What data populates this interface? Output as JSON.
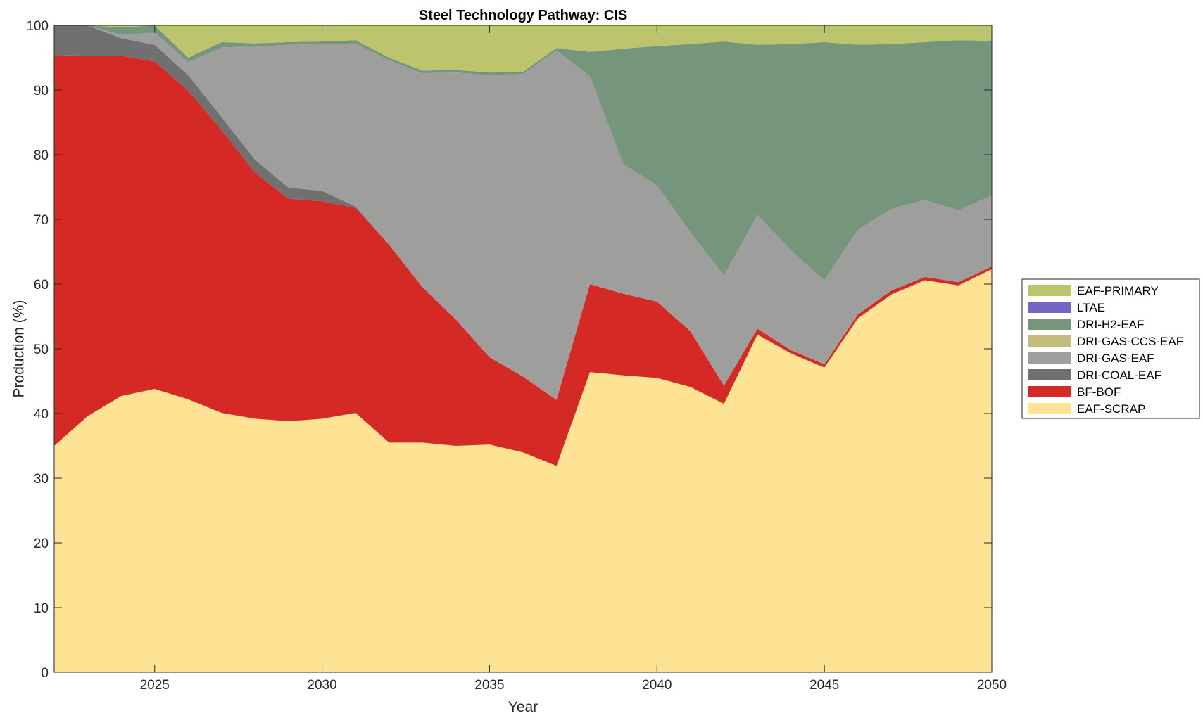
{
  "chart_data": {
    "type": "area",
    "stacked": true,
    "title": "Steel Technology Pathway: CIS",
    "xlabel": "Year",
    "ylabel": "Production (%)",
    "xlim": [
      2022,
      2050
    ],
    "ylim": [
      0,
      100
    ],
    "xticks": [
      2025,
      2030,
      2035,
      2040,
      2045,
      2050
    ],
    "yticks": [
      0,
      10,
      20,
      30,
      40,
      50,
      60,
      70,
      80,
      90,
      100
    ],
    "grid": false,
    "legend_position": "right",
    "x": [
      2022,
      2023,
      2024,
      2025,
      2026,
      2027,
      2028,
      2029,
      2030,
      2031,
      2032,
      2033,
      2034,
      2035,
      2036,
      2037,
      2038,
      2039,
      2040,
      2041,
      2042,
      2043,
      2044,
      2045,
      2046,
      2047,
      2048,
      2049,
      2050
    ],
    "series": [
      {
        "name": "EAF-SCRAP",
        "color": "#FEE395",
        "values": [
          35,
          39.6,
          42.7,
          43.8,
          42.2,
          40.1,
          39.2,
          38.8,
          39.2,
          40.1,
          35.5,
          35.5,
          35.0,
          35.2,
          34.0,
          31.9,
          46.4,
          45.9,
          45.5,
          44.1,
          41.5,
          52.2,
          49.3,
          47.1,
          54.7,
          58.4,
          60.6,
          59.8,
          62.3
        ]
      },
      {
        "name": "BF-BOF",
        "color": "#D42925",
        "values": [
          60.4,
          55.7,
          52.6,
          50.6,
          47.7,
          43.7,
          38.0,
          34.4,
          33.6,
          31.7,
          30.6,
          24.0,
          19.5,
          13.5,
          11.7,
          10.2,
          13.6,
          12.6,
          11.8,
          8.6,
          2.8,
          0.9,
          0.5,
          0.5,
          0.6,
          0.6,
          0.5,
          0.5,
          0.4
        ]
      },
      {
        "name": "DRI-COAL-EAF",
        "color": "#707070",
        "values": [
          4.6,
          4.7,
          2.7,
          2.6,
          2.4,
          2.0,
          2.0,
          1.7,
          1.6,
          0.2,
          0,
          0,
          0,
          0,
          0,
          0,
          0,
          0,
          0,
          0,
          0,
          0,
          0,
          0,
          0,
          0,
          0,
          0,
          0
        ]
      },
      {
        "name": "DRI-GAS-EAF",
        "color": "#9E9E9C",
        "values": [
          0,
          0,
          0.5,
          1.9,
          2.0,
          10.8,
          17.5,
          22.1,
          22.7,
          25.2,
          28.5,
          33.1,
          38.2,
          43.6,
          46.8,
          54.0,
          32.1,
          20.0,
          18.0,
          15.3,
          17.0,
          17.6,
          15.4,
          13.0,
          13.1,
          12.6,
          11.9,
          11.1,
          11.0
        ]
      },
      {
        "name": "DRI-GAS-CCS-EAF",
        "color": "#C2BB7A",
        "values": [
          0,
          0,
          0,
          0,
          0,
          0,
          0,
          0,
          0,
          0,
          0,
          0,
          0,
          0,
          0,
          0,
          0,
          0,
          0,
          0,
          0,
          0,
          0,
          0,
          0,
          0,
          0,
          0,
          0
        ]
      },
      {
        "name": "DRI-H2-EAF",
        "color": "#75967C",
        "values": [
          0,
          0,
          1.2,
          1.1,
          0.7,
          0.8,
          0.5,
          0.4,
          0.4,
          0.5,
          0.4,
          0.4,
          0.4,
          0.4,
          0.3,
          0.4,
          3.8,
          17.9,
          21.5,
          29.1,
          36.2,
          26.3,
          31.9,
          36.8,
          28.6,
          25.5,
          24.4,
          26.3,
          23.9
        ]
      },
      {
        "name": "LTAE",
        "color": "#7566C1",
        "values": [
          0,
          0,
          0,
          0,
          0,
          0,
          0,
          0,
          0,
          0,
          0,
          0,
          0,
          0,
          0,
          0,
          0,
          0,
          0,
          0,
          0,
          0,
          0,
          0,
          0,
          0,
          0,
          0,
          0
        ]
      },
      {
        "name": "EAF-PRIMARY",
        "color": "#BCC56C",
        "values": [
          0,
          0,
          2.3,
          0,
          5.0,
          2.6,
          2.8,
          2.6,
          2.5,
          2.3,
          5.0,
          7.0,
          6.9,
          7.3,
          7.2,
          3.5,
          4.1,
          3.6,
          3.2,
          2.9,
          2.5,
          3.0,
          2.9,
          2.6,
          3.0,
          2.9,
          2.6,
          2.3,
          2.4
        ]
      }
    ],
    "legend_order": [
      "EAF-PRIMARY",
      "LTAE",
      "DRI-H2-EAF",
      "DRI-GAS-CCS-EAF",
      "DRI-GAS-EAF",
      "DRI-COAL-EAF",
      "BF-BOF",
      "EAF-SCRAP"
    ]
  }
}
